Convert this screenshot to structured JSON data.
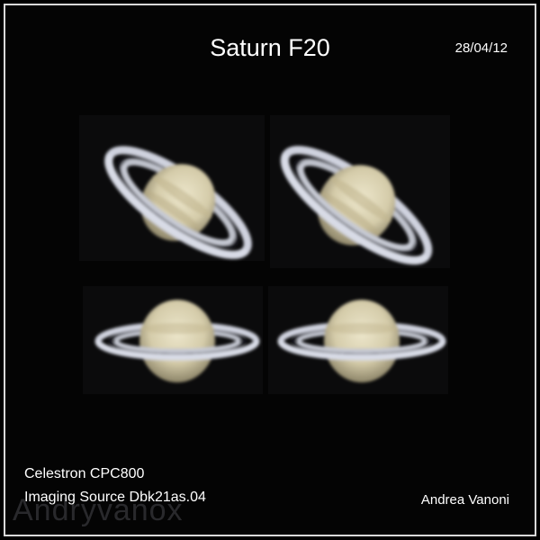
{
  "image": {
    "title": "Saturn F20",
    "date": "28/04/12",
    "telescope": "Celestron CPC800",
    "camera": "Imaging Source Dbk21as.04",
    "author": "Andrea Vanoni",
    "watermark": "Andryvanox"
  },
  "colors": {
    "background": "#000000",
    "frame": "#d9d9d9",
    "text": "#ffffff",
    "planet_light": "#e6e0c4",
    "planet_band": "#b9ad86",
    "ring_light": "#d8dbe6",
    "cassini_gap": "#1a1c2a"
  },
  "saturn_views": [
    {
      "name": "saturn-top-left",
      "ring_tilt_deg": 28
    },
    {
      "name": "saturn-top-right",
      "ring_tilt_deg": 30
    },
    {
      "name": "saturn-bottom-left",
      "ring_tilt_deg": 0
    },
    {
      "name": "saturn-bottom-right",
      "ring_tilt_deg": 0
    }
  ]
}
